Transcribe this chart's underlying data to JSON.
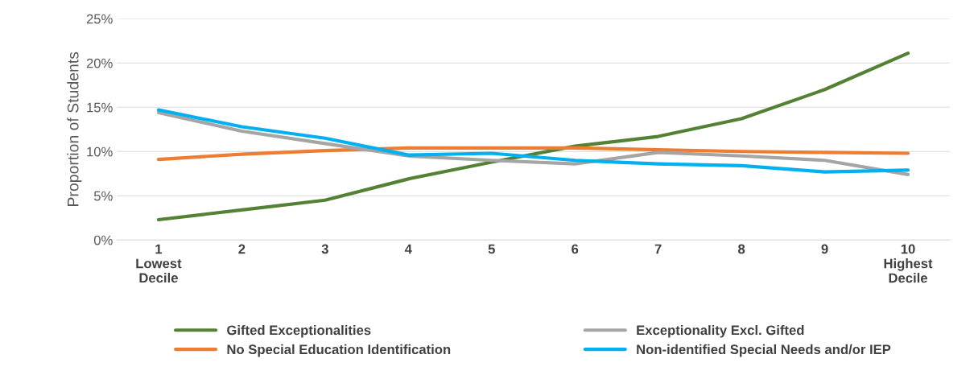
{
  "chart_data": {
    "type": "line",
    "ylabel": "Proportion of Students",
    "categories": [
      "1\nLowest\nDecile",
      "2",
      "3",
      "4",
      "5",
      "6",
      "7",
      "8",
      "9",
      "10\nHighest\nDecile"
    ],
    "series": [
      {
        "name": "Gifted Exceptionalities",
        "color": "#548235",
        "values": [
          2.3,
          3.4,
          4.5,
          6.9,
          8.8,
          10.6,
          11.7,
          13.7,
          17.0,
          21.1
        ]
      },
      {
        "name": "No Special Education Identification",
        "color": "#ed7d31",
        "values": [
          9.1,
          9.7,
          10.1,
          10.4,
          10.4,
          10.4,
          10.2,
          10.0,
          9.9,
          9.8
        ]
      },
      {
        "name": "Exceptionality Excl. Gifted",
        "color": "#a5a5a5",
        "values": [
          14.4,
          12.3,
          10.9,
          9.5,
          9.0,
          8.6,
          9.9,
          9.5,
          9.0,
          7.4
        ]
      },
      {
        "name": "Non-identified Special Needs and/or IEP",
        "color": "#00b0f0",
        "values": [
          14.7,
          12.8,
          11.5,
          9.6,
          9.8,
          9.0,
          8.6,
          8.4,
          7.7,
          7.9
        ]
      }
    ],
    "ylim": [
      0,
      25
    ],
    "yticks": [
      {
        "value": 0,
        "label": "0%"
      },
      {
        "value": 5,
        "label": "5%"
      },
      {
        "value": 10,
        "label": "10%"
      },
      {
        "value": 15,
        "label": "15%"
      },
      {
        "value": 20,
        "label": "20%"
      },
      {
        "value": 25,
        "label": "25%"
      }
    ],
    "grid": "y",
    "legend": "bottom",
    "marker": "none",
    "line_style": "solid"
  }
}
